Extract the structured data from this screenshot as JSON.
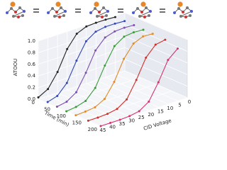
{
  "chart_data": {
    "type": "line3d",
    "x_label": "CID Voltage",
    "y_label": "ATOOU",
    "z_label": "Time (min)",
    "x": [
      45,
      40,
      35,
      30,
      25,
      20,
      15,
      10,
      5
    ],
    "xlim": [
      45,
      0
    ],
    "xticks": [
      45,
      40,
      35,
      30,
      25,
      20,
      15,
      10,
      5,
      0
    ],
    "ylim": [
      0,
      1
    ],
    "yticks": [
      {
        "value": 0,
        "label": "0.0"
      },
      {
        "value": 0.2,
        "label": "0.2"
      },
      {
        "value": 0.4,
        "label": "0.4"
      },
      {
        "value": 0.6,
        "label": "0.6"
      },
      {
        "value": 0.8,
        "label": "0.8"
      },
      {
        "value": 1,
        "label": "1.0"
      }
    ],
    "zlim": [
      0,
      200
    ],
    "zticks": [
      0,
      50,
      100,
      150,
      200
    ],
    "grid": true,
    "series": [
      {
        "z": 0,
        "color": "#222222",
        "values": [
          0.03,
          0.12,
          0.36,
          0.7,
          0.91,
          0.98,
          0.99,
          0.99,
          0.98
        ]
      },
      {
        "z": 30,
        "color": "#3346b8",
        "values": [
          0.02,
          0.07,
          0.24,
          0.57,
          0.85,
          0.96,
          0.99,
          0.99,
          0.98
        ]
      },
      {
        "z": 60,
        "color": "#7a4fb0",
        "values": [
          0.01,
          0.04,
          0.15,
          0.43,
          0.76,
          0.93,
          0.98,
          0.99,
          0.98
        ]
      },
      {
        "z": 90,
        "color": "#3a9a3a",
        "values": [
          0,
          0.02,
          0.07,
          0.24,
          0.57,
          0.85,
          0.96,
          0.98,
          0.97
        ]
      },
      {
        "z": 120,
        "color": "#e08a2a",
        "values": [
          0,
          0.01,
          0.03,
          0.12,
          0.36,
          0.7,
          0.91,
          0.98,
          0.97
        ]
      },
      {
        "z": 160,
        "color": "#d0302a",
        "values": [
          0,
          0,
          0.01,
          0.04,
          0.15,
          0.43,
          0.76,
          0.93,
          0.96
        ]
      },
      {
        "z": 200,
        "color": "#d6336c",
        "values": [
          0,
          0,
          0,
          0.01,
          0.04,
          0.15,
          0.43,
          0.76,
          0.9
        ]
      }
    ]
  }
}
